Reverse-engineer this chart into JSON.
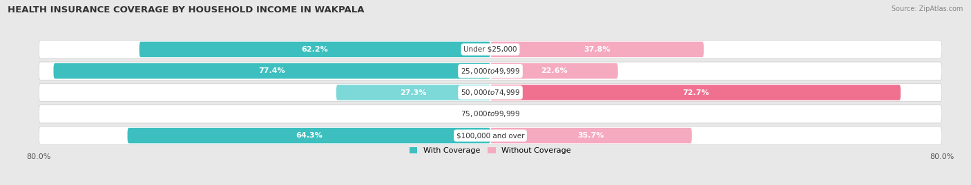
{
  "title": "HEALTH INSURANCE COVERAGE BY HOUSEHOLD INCOME IN WAKPALA",
  "source": "Source: ZipAtlas.com",
  "categories": [
    "Under $25,000",
    "$25,000 to $49,999",
    "$50,000 to $74,999",
    "$75,000 to $99,999",
    "$100,000 and over"
  ],
  "with_coverage": [
    62.2,
    77.4,
    27.3,
    0.0,
    64.3
  ],
  "without_coverage": [
    37.8,
    22.6,
    72.7,
    0.0,
    35.7
  ],
  "color_with": "#3dbfbf",
  "color_with_light": "#7dd8d8",
  "color_without": "#f07090",
  "color_without_light": "#f5aac0",
  "xlim_left": -80.0,
  "xlim_right": 80.0,
  "bar_height": 0.72,
  "background_color": "#e8e8e8",
  "row_bg_color": "#f5f5f5",
  "title_fontsize": 9.5,
  "source_fontsize": 7,
  "label_fontsize": 8,
  "category_fontsize": 7.5,
  "legend_fontsize": 8
}
